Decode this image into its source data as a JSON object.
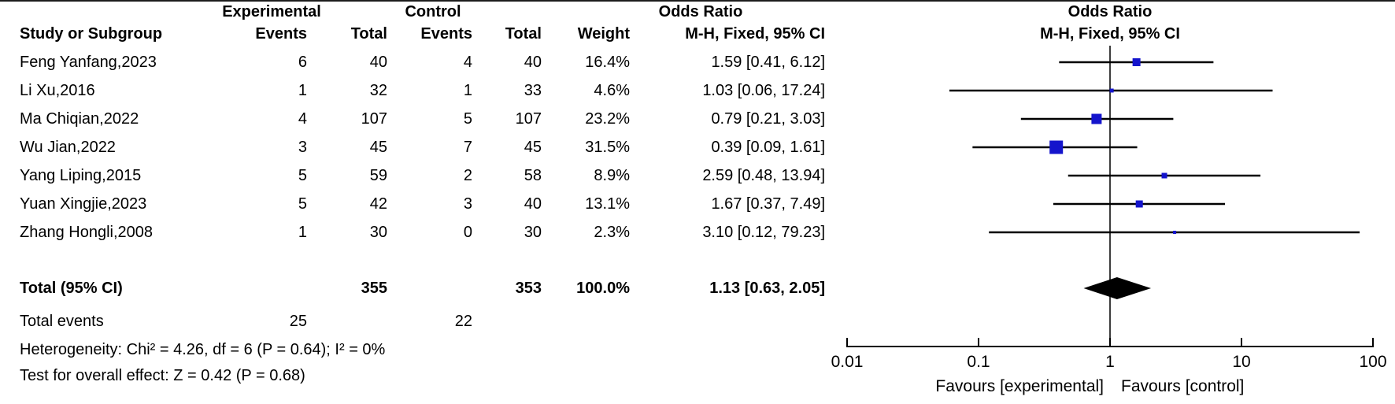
{
  "colors": {
    "marker_blue": "#1414CC",
    "line_black": "#000000",
    "center_line_gray": "#3d3d3d",
    "text_black": "#000000"
  },
  "headers": {
    "group_experimental": "Experimental",
    "group_control": "Control",
    "odds_ratio_text_col": "Odds Ratio",
    "odds_ratio_plot_col": "Odds Ratio",
    "study": "Study or Subgroup",
    "events_experimental": "Events",
    "total_experimental": "Total",
    "events_control": "Events",
    "total_control": "Total",
    "weight": "Weight",
    "mh_fixed_text_col": "M-H, Fixed, 95% CI",
    "mh_fixed_plot_col": "M-H, Fixed, 95% CI"
  },
  "chart_data": {
    "type": "scatter",
    "variant": "forest_plot_odds_ratio_mh_fixed",
    "x_scale": "log10",
    "x_ticks": [
      "0.01",
      "0.1",
      "1",
      "10",
      "100"
    ],
    "x_tick_values": [
      0.01,
      0.1,
      1,
      10,
      100
    ],
    "xlim": [
      0.01,
      100
    ],
    "favours_left": "Favours [experimental]",
    "favours_right": "Favours [control]",
    "studies": [
      {
        "name": "Feng Yanfang,2023",
        "e_events": "6",
        "e_total": "40",
        "c_events": "4",
        "c_total": "40",
        "weight": "16.4%",
        "weight_pct": 16.4,
        "or_text": "1.59 [0.41, 6.12]",
        "or": 1.59,
        "ci_low": 0.41,
        "ci_high": 6.12
      },
      {
        "name": "Li Xu,2016",
        "e_events": "1",
        "e_total": "32",
        "c_events": "1",
        "c_total": "33",
        "weight": "4.6%",
        "weight_pct": 4.6,
        "or_text": "1.03 [0.06, 17.24]",
        "or": 1.03,
        "ci_low": 0.06,
        "ci_high": 17.24
      },
      {
        "name": "Ma Chiqian,2022",
        "e_events": "4",
        "e_total": "107",
        "c_events": "5",
        "c_total": "107",
        "weight": "23.2%",
        "weight_pct": 23.2,
        "or_text": "0.79 [0.21, 3.03]",
        "or": 0.79,
        "ci_low": 0.21,
        "ci_high": 3.03
      },
      {
        "name": "Wu Jian,2022",
        "e_events": "3",
        "e_total": "45",
        "c_events": "7",
        "c_total": "45",
        "weight": "31.5%",
        "weight_pct": 31.5,
        "or_text": "0.39 [0.09, 1.61]",
        "or": 0.39,
        "ci_low": 0.09,
        "ci_high": 1.61
      },
      {
        "name": "Yang Liping,2015",
        "e_events": "5",
        "e_total": "59",
        "c_events": "2",
        "c_total": "58",
        "weight": "8.9%",
        "weight_pct": 8.9,
        "or_text": "2.59 [0.48, 13.94]",
        "or": 2.59,
        "ci_low": 0.48,
        "ci_high": 13.94
      },
      {
        "name": "Yuan Xingjie,2023",
        "e_events": "5",
        "e_total": "42",
        "c_events": "3",
        "c_total": "40",
        "weight": "13.1%",
        "weight_pct": 13.1,
        "or_text": "1.67 [0.37, 7.49]",
        "or": 1.67,
        "ci_low": 0.37,
        "ci_high": 7.49
      },
      {
        "name": "Zhang Hongli,2008",
        "e_events": "1",
        "e_total": "30",
        "c_events": "0",
        "c_total": "30",
        "weight": "2.3%",
        "weight_pct": 2.3,
        "or_text": "3.10 [0.12, 79.23]",
        "or": 3.1,
        "ci_low": 0.12,
        "ci_high": 79.23
      }
    ],
    "total": {
      "label": "Total (95% CI)",
      "e_total": "355",
      "c_total": "353",
      "weight": "100.0%",
      "or_text": "1.13 [0.63, 2.05]",
      "or": 1.13,
      "ci_low": 0.63,
      "ci_high": 2.05
    }
  },
  "footer": {
    "total_events_label": "Total events",
    "total_events_experimental": "25",
    "total_events_control": "22",
    "heterogeneity": "Heterogeneity: Chi² = 4.26, df = 6 (P = 0.64); I² = 0%",
    "overall_effect": "Test for overall effect: Z = 0.42 (P = 0.68)"
  }
}
